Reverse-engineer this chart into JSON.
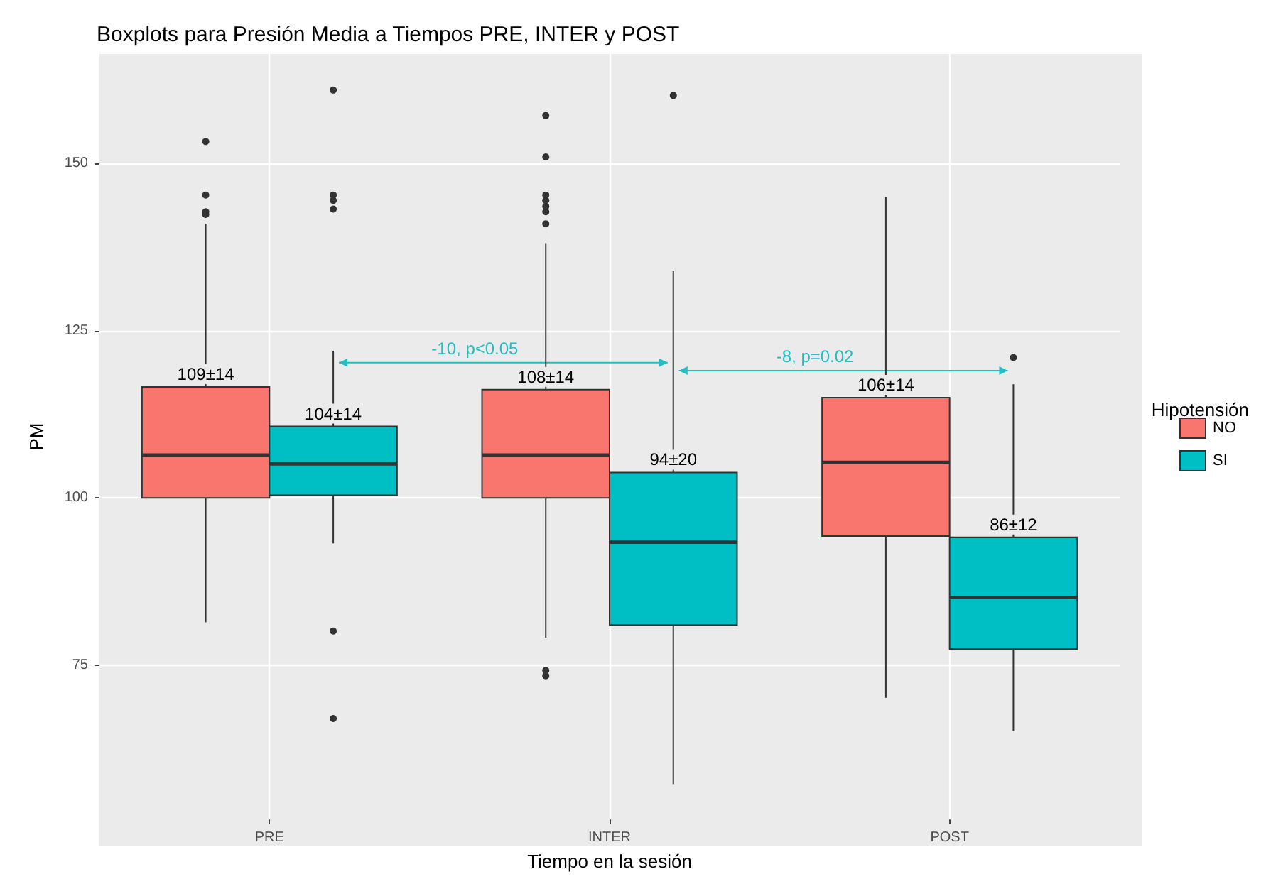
{
  "chart_data": {
    "type": "box",
    "title": "Boxplots para Presión Media a Tiempos PRE, INTER y POST",
    "xlabel": "Tiempo en la sesión",
    "ylabel": "PM",
    "legend_title": "Hipotensión",
    "legend": "right",
    "grid": true,
    "categories": [
      "PRE",
      "INTER",
      "POST"
    ],
    "ylim": [
      51.9,
      166.4
    ],
    "yticks": [
      75,
      100,
      125,
      150
    ],
    "series": [
      {
        "name": "NO",
        "color": "#f8766d",
        "value_labels": [
          "109±14",
          "108±14",
          "106±14"
        ],
        "boxes": [
          {
            "low": 81.4,
            "q1": 100,
            "median": 106.4,
            "q3": 116.6,
            "high": 141,
            "outliers": [
              153.3,
              145.3,
              142.8,
              142.4
            ]
          },
          {
            "low": 79.1,
            "q1": 100,
            "median": 106.4,
            "q3": 116.2,
            "high": 138.1,
            "outliers": [
              157.2,
              151,
              145.3,
              144.5,
              143.6,
              142.8,
              141,
              74.2,
              73.4
            ]
          },
          {
            "low": 70.1,
            "q1": 94.3,
            "median": 105.3,
            "q3": 115,
            "high": 145
          }
        ]
      },
      {
        "name": "SI",
        "color": "#00bfc4",
        "value_labels": [
          "104±14",
          "94±20",
          "86±12"
        ],
        "boxes": [
          {
            "low": 93.2,
            "q1": 100.4,
            "median": 105.1,
            "q3": 110.7,
            "high": 122,
            "outliers": [
              161,
              145.3,
              144.5,
              143.2,
              80.1,
              67
            ]
          },
          {
            "low": 57.2,
            "q1": 81,
            "median": 93.4,
            "q3": 103.8,
            "high": 134,
            "outliers": [
              160.2
            ]
          },
          {
            "low": 65.2,
            "q1": 77.4,
            "median": 85.1,
            "q3": 94.1,
            "high": 117,
            "outliers": [
              121
            ]
          }
        ]
      }
    ],
    "annotations": [
      "-10, p<0.05",
      "-8, p=0.02"
    ]
  }
}
